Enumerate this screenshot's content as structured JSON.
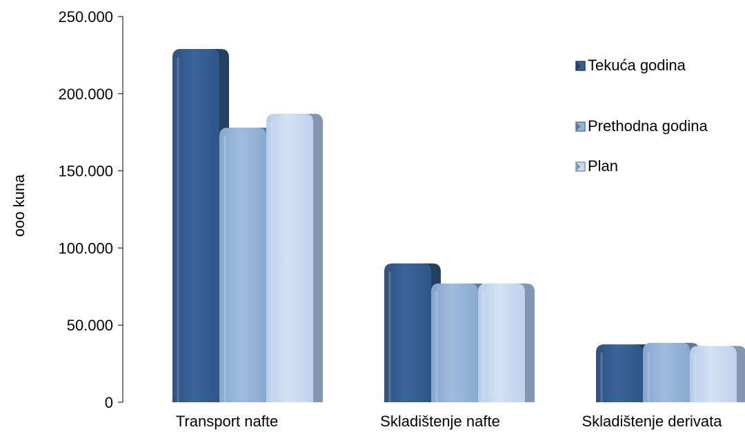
{
  "chart_data": {
    "type": "bar",
    "ylabel": "ooo kuna",
    "xlabel": "",
    "ylim": [
      0,
      250000
    ],
    "yticks": [
      0,
      50000,
      100000,
      150000,
      200000,
      250000
    ],
    "ytick_labels": [
      "0",
      "50.000",
      "100.000",
      "150.000",
      "200.000",
      "250.000"
    ],
    "categories": [
      "Transport nafte",
      "Skladištenje nafte",
      "Skladištenje derivata"
    ],
    "series": [
      {
        "name": "Tekuća godina",
        "values": [
          229000,
          90000,
          37500
        ],
        "color": "#376092",
        "side_color": "#23415f"
      },
      {
        "name": "Prethodna godina",
        "values": [
          178000,
          77000,
          38500
        ],
        "color": "#95b3d7",
        "side_color": "#5f7a99"
      },
      {
        "name": "Plan",
        "values": [
          187000,
          77000,
          36500
        ],
        "color": "#c6d9f1",
        "side_color": "#8497b0"
      }
    ],
    "legend_position": "right",
    "grid": false
  }
}
